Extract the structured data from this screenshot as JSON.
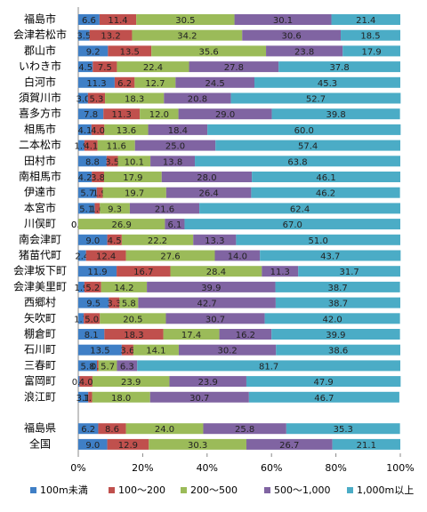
{
  "chart_data": {
    "type": "stacked-bar-horizontal",
    "categories": [
      "福島市",
      "会津若松市",
      "郡山市",
      "いわき市",
      "白河市",
      "須賀川市",
      "喜多方市",
      "相馬市",
      "二本松市",
      "田村市",
      "南相馬市",
      "伊達市",
      "本宮市",
      "川俣町",
      "南会津町",
      "猪苗代町",
      "会津坂下町",
      "会津美里町",
      "西郷村",
      "矢吹町",
      "棚倉町",
      "石川町",
      "三春町",
      "富岡町",
      "浪江町",
      null,
      "福島県",
      "全国"
    ],
    "series": [
      {
        "name": "100m未満",
        "color": "#3f7fc6",
        "values": [
          6.6,
          3.5,
          9.2,
          4.5,
          11.3,
          3.0,
          7.8,
          4.1,
          1.9,
          8.8,
          4.2,
          5.7,
          5.1,
          0.0,
          9.0,
          2.4,
          11.9,
          1.9,
          9.5,
          1.7,
          8.1,
          13.5,
          5.8,
          0.4,
          3.1,
          null,
          6.2,
          9.0
        ],
        "value_labels": [
          "6.6",
          "3.5",
          "9.2",
          "4.5",
          "11.3",
          "3.0",
          "7.8",
          "4.1",
          "1.9",
          "8.8",
          "4.2",
          "5.7",
          "5.1",
          "0.0",
          "9.0",
          "2.4",
          "11.9",
          "1.9",
          "9.5",
          "1.7",
          "8.1",
          "13.5",
          "5.8",
          "0.4",
          "3.1",
          null,
          "6.2",
          "9.0"
        ]
      },
      {
        "name": "100～200",
        "color": "#c0504d",
        "values": [
          11.4,
          13.2,
          13.5,
          7.5,
          6.2,
          5.3,
          11.3,
          4.0,
          4.1,
          3.5,
          3.8,
          1.9,
          1.6,
          0.0,
          4.5,
          12.4,
          16.7,
          5.2,
          3.3,
          5.0,
          18.3,
          3.6,
          0.5,
          4.0,
          1.2,
          null,
          8.6,
          12.9
        ],
        "value_labels": [
          "11.4",
          "13.2",
          "13.5",
          "7.5",
          "6.2",
          "5.3",
          "11.3",
          "4.0",
          "4.1",
          "3.5",
          "3.8",
          "1.9",
          "1.6",
          "0.0",
          "4.5",
          "12.4",
          "16.7",
          "5.2",
          "3.3",
          "5.0",
          "18.3",
          "3.6",
          "0.5",
          "4.0",
          "1.2",
          null,
          "8.6",
          "12.9"
        ]
      },
      {
        "name": "200～500",
        "color": "#9bbb59",
        "values": [
          30.5,
          34.2,
          35.6,
          22.4,
          12.7,
          18.3,
          12.0,
          13.6,
          11.6,
          10.1,
          17.9,
          19.7,
          9.3,
          26.9,
          22.2,
          27.6,
          28.4,
          14.2,
          5.8,
          20.5,
          17.4,
          14.1,
          5.7,
          23.9,
          18.0,
          null,
          24.0,
          30.3
        ],
        "value_labels": [
          "30.5",
          "34.2",
          "35.6",
          "22.4",
          "12.7",
          "18.3",
          "12.0",
          "13.6",
          "11.6",
          "10.1",
          "17.9",
          "19.7",
          "9.3",
          "26.9",
          "22.2",
          "27.6",
          "28.4",
          "14.2",
          "5.8",
          "20.5",
          "17.4",
          "14.1",
          "5.7",
          "23.9",
          "18.0",
          null,
          "24.0",
          "30.3"
        ]
      },
      {
        "name": "500～1,000",
        "color": "#8064a2",
        "values": [
          30.1,
          30.6,
          23.8,
          27.8,
          24.5,
          20.8,
          29.0,
          18.4,
          25.0,
          13.8,
          28.0,
          26.4,
          21.6,
          6.1,
          13.3,
          14.0,
          11.3,
          39.9,
          42.7,
          30.7,
          16.2,
          30.2,
          6.3,
          23.9,
          30.7,
          null,
          25.8,
          26.7
        ],
        "value_labels": [
          "30.1",
          "30.6",
          "23.8",
          "27.8",
          "24.5",
          "20.8",
          "29.0",
          "18.4",
          "25.0",
          "13.8",
          "28.0",
          "26.4",
          "21.6",
          "6.1",
          "13.3",
          "14.0",
          "11.3",
          "39.9",
          "42.7",
          "30.7",
          "16.2",
          "30.2",
          "6.3",
          "23.9",
          "30.7",
          null,
          "25.8",
          "26.7"
        ]
      },
      {
        "name": "1,000m以上",
        "color": "#4bacc6",
        "values": [
          21.4,
          18.5,
          17.9,
          37.8,
          45.3,
          52.7,
          39.8,
          60.0,
          57.4,
          63.8,
          46.1,
          46.2,
          62.4,
          67.0,
          51.0,
          43.7,
          31.7,
          38.7,
          38.7,
          42.0,
          39.9,
          38.6,
          81.7,
          47.9,
          46.7,
          null,
          35.3,
          21.1
        ],
        "value_labels": [
          "21.4",
          "18.5",
          "17.9",
          "37.8",
          "45.3",
          "52.7",
          "39.8",
          "60.0",
          "57.4",
          "63.8",
          "46.1",
          "46.2",
          "62.4",
          "67.0",
          "51.0",
          "43.7",
          "31.7",
          "38.7",
          "38.7",
          "42.0",
          "39.9",
          "38.6",
          "81.7",
          "47.9",
          "46.7",
          null,
          "35.3",
          "21.1"
        ]
      }
    ],
    "xlim": [
      0,
      100
    ],
    "xticks": [
      {
        "value": 0,
        "label": "0%"
      },
      {
        "value": 20,
        "label": "20%"
      },
      {
        "value": 40,
        "label": "40%"
      },
      {
        "value": 60,
        "label": "60%"
      },
      {
        "value": 80,
        "label": "80%"
      },
      {
        "value": 100,
        "label": "100%"
      }
    ],
    "legend": "bottom"
  }
}
